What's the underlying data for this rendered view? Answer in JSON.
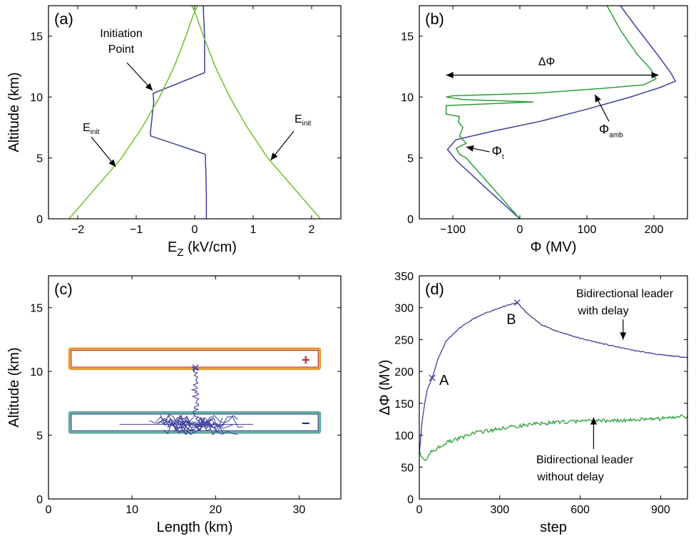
{
  "colors": {
    "blue": "#3b3f9a",
    "green": "#2e9e3c",
    "lightgreen": "#6fbf2a",
    "red": "#c0282a",
    "orange": "#e69b2e",
    "teal": "#5fa9a0",
    "navy": "#1f3a7a"
  },
  "chart_data": [
    {
      "type": "line",
      "panel_label": "(a)",
      "xlabel_main": "E",
      "xlabel_sub": "Z",
      "xlabel_unit": " (kV/cm)",
      "ylabel": "Altitude (km)",
      "xlim": [
        -2.5,
        2.5
      ],
      "ylim": [
        0,
        17.5
      ],
      "xticks": [
        -2,
        -1,
        0,
        1,
        2
      ],
      "xtick_labels": [
        "−2",
        "−1",
        "0",
        "1",
        "2"
      ],
      "yticks": [
        0,
        5,
        10,
        15
      ],
      "ytick_labels": [
        "0",
        "5",
        "10",
        "15"
      ],
      "annotations": {
        "initiation": [
          "Initiation",
          "Point"
        ],
        "einit_main": "E",
        "einit_sub": "init"
      },
      "series": [
        {
          "color": "blue",
          "x": [
            0.2,
            0.2,
            0.19,
            0.18,
            -0.75,
            -0.76,
            -0.7,
            -0.71,
            0.17,
            0.17,
            0.15,
            0.15
          ],
          "y": [
            0,
            2,
            4,
            5.3,
            6.8,
            7.0,
            9.6,
            10.3,
            12.0,
            15.0,
            17.0,
            17.5
          ]
        },
        {
          "color": "lightgreen",
          "x": [
            -2.15,
            -1.7,
            -1.25,
            -0.9,
            -0.6,
            -0.35,
            -0.15,
            -0.02,
            0.05
          ],
          "y": [
            0,
            2.5,
            5,
            7.5,
            10,
            12.5,
            15,
            16.8,
            17.5
          ]
        },
        {
          "color": "lightgreen",
          "x": [
            2.15,
            1.7,
            1.25,
            0.9,
            0.6,
            0.35,
            0.15,
            0.02,
            -0.05
          ],
          "y": [
            0,
            2.5,
            5,
            7.5,
            10,
            12.5,
            15,
            16.8,
            17.5
          ]
        }
      ]
    },
    {
      "type": "line",
      "panel_label": "(b)",
      "xlabel": "Φ (MV)",
      "xlim": [
        -150,
        250
      ],
      "ylim": [
        0,
        17.5
      ],
      "xticks": [
        -100,
        0,
        100,
        200
      ],
      "xtick_labels": [
        "−100",
        "0",
        "100",
        "200"
      ],
      "yticks": [
        0,
        5,
        10,
        15
      ],
      "ytick_labels": [
        "0",
        "5",
        "10",
        "15"
      ],
      "annotations": {
        "delta": "ΔΦ",
        "phi": "Φ",
        "phi_t_sub": "t",
        "phi_amb_sub": "amb"
      },
      "series": [
        {
          "color": "blue",
          "x": [
            0,
            -50,
            -95,
            -108,
            -95,
            -40,
            30,
            100,
            165,
            210,
            232,
            225,
            205,
            170,
            150
          ],
          "y": [
            0,
            2.5,
            4.8,
            5.7,
            6.5,
            7.2,
            8.0,
            9.0,
            10.0,
            10.8,
            11.3,
            12.0,
            13.5,
            16.0,
            17.5
          ]
        },
        {
          "color": "green",
          "x": [
            0,
            -40,
            -80,
            -90,
            -95,
            -80,
            -90,
            -85,
            -92,
            -90,
            -110,
            -110,
            20,
            -85,
            -110,
            -100,
            20,
            120,
            185,
            203,
            195,
            175,
            150,
            130
          ],
          "y": [
            0,
            2.5,
            5.0,
            5.3,
            5.8,
            6.2,
            6.8,
            7.5,
            8.0,
            8.4,
            8.6,
            9.3,
            9.6,
            9.8,
            10.0,
            10.1,
            10.3,
            10.7,
            11.0,
            11.5,
            12.3,
            13.5,
            15.5,
            17.5
          ]
        }
      ]
    },
    {
      "type": "scatter",
      "panel_label": "(c)",
      "xlabel": "Length (km)",
      "ylabel": "Altitude (km)",
      "xlim": [
        0,
        35
      ],
      "ylim": [
        0,
        17.5
      ],
      "xticks": [
        0,
        10,
        20,
        30
      ],
      "xtick_labels": [
        "0",
        "10",
        "20",
        "30"
      ],
      "yticks": [
        0,
        5,
        10,
        15
      ],
      "ytick_labels": [
        "0",
        "5",
        "10",
        "15"
      ],
      "regions": [
        {
          "sign": "+",
          "x0": 2.5,
          "x1": 32.5,
          "y0": 10.2,
          "y1": 11.8,
          "edge": "orange",
          "inner": "red",
          "sign_color": "red"
        },
        {
          "sign": "−",
          "x0": 2.5,
          "x1": 32.5,
          "y0": 5.2,
          "y1": 6.8,
          "edge": "teal",
          "inner": "navy",
          "sign_color": "navy"
        }
      ],
      "initiation_point": {
        "x": 17.6,
        "y": 10.3
      }
    },
    {
      "type": "line",
      "panel_label": "(d)",
      "xlabel": "step",
      "ylabel": "ΔΦ (MV)",
      "xlim": [
        0,
        1000
      ],
      "ylim": [
        0,
        350
      ],
      "xticks": [
        0,
        300,
        600,
        900
      ],
      "xtick_labels": [
        "0",
        "300",
        "600",
        "900"
      ],
      "yticks": [
        0,
        50,
        100,
        150,
        200,
        250,
        300,
        350
      ],
      "ytick_labels": [
        "0",
        "50",
        "100",
        "150",
        "200",
        "250",
        "300",
        "350"
      ],
      "markers": [
        {
          "label": "A",
          "x": 48,
          "y": 190
        },
        {
          "label": "B",
          "x": 365,
          "y": 308
        }
      ],
      "annotations": {
        "with_delay": [
          "Bidirectional leader",
          "with delay"
        ],
        "without_delay": [
          "Bidirectional leader",
          "without delay"
        ]
      },
      "series": [
        {
          "color": "blue",
          "x": [
            0,
            5,
            10,
            20,
            30,
            48,
            70,
            100,
            150,
            200,
            250,
            300,
            365,
            400,
            450,
            500,
            600,
            700,
            800,
            900,
            1000
          ],
          "y": [
            70,
            95,
            120,
            150,
            172,
            190,
            220,
            248,
            268,
            282,
            292,
            300,
            308,
            292,
            275,
            265,
            252,
            242,
            233,
            226,
            222
          ]
        },
        {
          "color": "green",
          "x": [
            0,
            10,
            20,
            40,
            60,
            80,
            100,
            150,
            200,
            300,
            400,
            500,
            600,
            700,
            800,
            900,
            1000
          ],
          "y": [
            75,
            66,
            60,
            72,
            78,
            84,
            88,
            95,
            103,
            110,
            116,
            120,
            122,
            123,
            124,
            126,
            130
          ]
        }
      ]
    }
  ]
}
